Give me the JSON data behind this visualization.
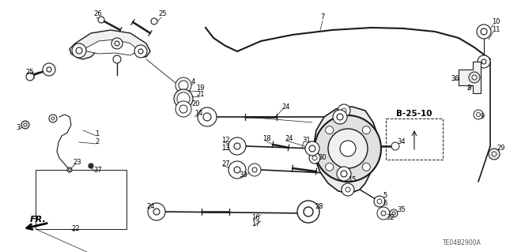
{
  "bg_color": "#ffffff",
  "line_color": "#1a1a1a",
  "figsize": [
    6.4,
    3.19
  ],
  "dpi": 100,
  "ref_label": "TE04B2900A",
  "b2510_text": "B-25-10"
}
